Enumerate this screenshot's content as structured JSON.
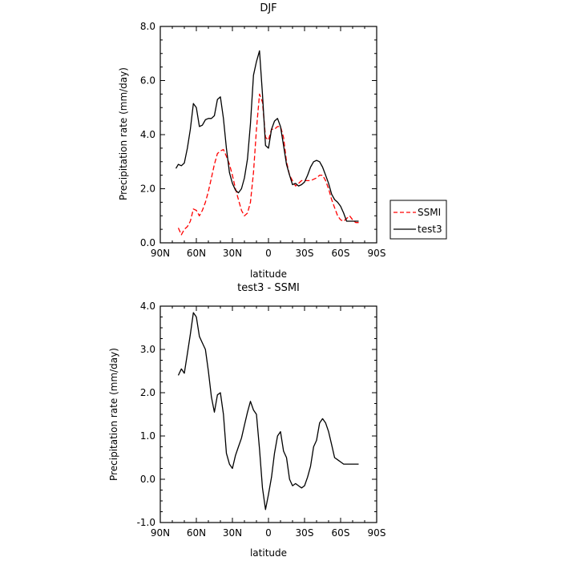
{
  "chart_data": [
    {
      "type": "line",
      "title": "DJF",
      "xlabel": "latitude",
      "ylabel": "Precipitation rate (mm/day)",
      "xlim": [
        -90,
        90
      ],
      "ylim": [
        0,
        8
      ],
      "x_ticks": [
        "90N",
        "60N",
        "30N",
        "0",
        "30S",
        "60S",
        "90S"
      ],
      "y_ticks": [
        "0.0",
        "2.0",
        "4.0",
        "6.0",
        "8.0"
      ],
      "legend": {
        "placement": "right",
        "entries": [
          "SSMI",
          "test3"
        ]
      },
      "series": [
        {
          "name": "SSMI",
          "color": "#ff0000",
          "dash": "dashed",
          "x": [
            -75,
            -72.5,
            -70,
            -67.5,
            -65,
            -62.5,
            -60,
            -57.5,
            -55,
            -52.5,
            -50,
            -47.5,
            -45,
            -42.5,
            -40,
            -37.5,
            -35,
            -32.5,
            -30,
            -27.5,
            -25,
            -22.5,
            -20,
            -17.5,
            -15,
            -12.5,
            -10,
            -7.5,
            -5,
            -2.5,
            0,
            2.5,
            5,
            7.5,
            10,
            12.5,
            15,
            17.5,
            20,
            22.5,
            25,
            27.5,
            30,
            32.5,
            35,
            37.5,
            40,
            42.5,
            45,
            47.5,
            50,
            52.5,
            55,
            57.5,
            60,
            62.5,
            65,
            67.5,
            70,
            72.5,
            75
          ],
          "y": [
            0.55,
            0.3,
            0.5,
            0.6,
            0.8,
            1.25,
            1.2,
            1.0,
            1.2,
            1.5,
            1.9,
            2.4,
            2.9,
            3.3,
            3.4,
            3.45,
            3.2,
            2.9,
            2.5,
            2.0,
            1.6,
            1.2,
            1.0,
            1.1,
            1.5,
            2.6,
            4.2,
            5.5,
            5.2,
            3.9,
            3.8,
            4.2,
            4.2,
            4.3,
            4.3,
            3.9,
            3.0,
            2.5,
            2.3,
            2.1,
            2.2,
            2.3,
            2.3,
            2.3,
            2.3,
            2.35,
            2.4,
            2.5,
            2.5,
            2.3,
            2.0,
            1.6,
            1.3,
            1.0,
            0.85,
            0.8,
            0.9,
            1.0,
            0.85,
            0.75,
            0.75
          ]
        },
        {
          "name": "test3",
          "color": "#000000",
          "dash": "solid",
          "x": [
            -77,
            -75,
            -72.5,
            -70,
            -67.5,
            -65,
            -62.5,
            -60,
            -57.5,
            -55,
            -52.5,
            -50,
            -47.5,
            -45,
            -42.5,
            -40,
            -37.5,
            -35,
            -32.5,
            -30,
            -27.5,
            -25,
            -22.5,
            -20,
            -17.5,
            -15,
            -12.5,
            -10,
            -7.5,
            -5,
            -2.5,
            0,
            2.5,
            5,
            7.5,
            10,
            12.5,
            15,
            17.5,
            20,
            22.5,
            25,
            27.5,
            30,
            32.5,
            35,
            37.5,
            40,
            42.5,
            45,
            47.5,
            50,
            52.5,
            55,
            57.5,
            60,
            62.5,
            65,
            67.5,
            70,
            72.5,
            75
          ],
          "y": [
            2.75,
            2.9,
            2.85,
            2.95,
            3.5,
            4.2,
            5.15,
            5.0,
            4.3,
            4.35,
            4.55,
            4.6,
            4.6,
            4.7,
            5.3,
            5.4,
            4.6,
            3.5,
            2.6,
            2.2,
            1.95,
            1.85,
            2.0,
            2.4,
            3.1,
            4.4,
            6.2,
            6.7,
            7.1,
            5.5,
            3.6,
            3.5,
            4.2,
            4.5,
            4.6,
            4.3,
            3.6,
            2.9,
            2.5,
            2.15,
            2.2,
            2.1,
            2.15,
            2.25,
            2.5,
            2.8,
            3.0,
            3.05,
            3.0,
            2.8,
            2.5,
            2.2,
            1.8,
            1.6,
            1.5,
            1.35,
            1.1,
            0.8,
            0.8,
            0.8,
            0.8,
            0.8
          ]
        }
      ]
    },
    {
      "type": "line",
      "title": "test3 - SSMI",
      "xlabel": "latitude",
      "ylabel": "Precipitation rate (mm/day)",
      "xlim": [
        -90,
        90
      ],
      "ylim": [
        -1,
        4
      ],
      "x_ticks": [
        "90N",
        "60N",
        "30N",
        "0",
        "30S",
        "60S",
        "90S"
      ],
      "y_ticks": [
        "-1.0",
        "0.0",
        "1.0",
        "2.0",
        "3.0",
        "4.0"
      ],
      "series": [
        {
          "color": "#000000",
          "dash": "solid",
          "x": [
            -75,
            -72.5,
            -70,
            -67.5,
            -65,
            -62.5,
            -60,
            -57.5,
            -55,
            -52.5,
            -50,
            -47.5,
            -45,
            -42.5,
            -40,
            -37.5,
            -35,
            -32.5,
            -30,
            -27.5,
            -25,
            -22.5,
            -20,
            -17.5,
            -15,
            -12.5,
            -10,
            -7.5,
            -5,
            -2.5,
            0,
            2.5,
            5,
            7.5,
            10,
            12.5,
            15,
            17.5,
            20,
            22.5,
            25,
            27.5,
            30,
            32.5,
            35,
            37.5,
            40,
            42.5,
            45,
            47.5,
            50,
            52.5,
            55,
            57.5,
            60,
            62.5,
            65,
            67.5,
            70,
            72.5,
            75
          ],
          "y": [
            2.4,
            2.55,
            2.45,
            2.9,
            3.35,
            3.85,
            3.75,
            3.3,
            3.15,
            3.0,
            2.5,
            1.9,
            1.55,
            1.95,
            2.0,
            1.5,
            0.6,
            0.35,
            0.25,
            0.55,
            0.75,
            0.95,
            1.25,
            1.55,
            1.8,
            1.6,
            1.5,
            0.7,
            -0.2,
            -0.7,
            -0.35,
            0.05,
            0.6,
            1.0,
            1.1,
            0.65,
            0.5,
            0.0,
            -0.15,
            -0.1,
            -0.15,
            -0.2,
            -0.15,
            0.05,
            0.3,
            0.75,
            0.9,
            1.3,
            1.4,
            1.3,
            1.1,
            0.8,
            0.5,
            0.45,
            0.4,
            0.35,
            0.35,
            0.35,
            0.35,
            0.35,
            0.35
          ]
        }
      ]
    }
  ]
}
